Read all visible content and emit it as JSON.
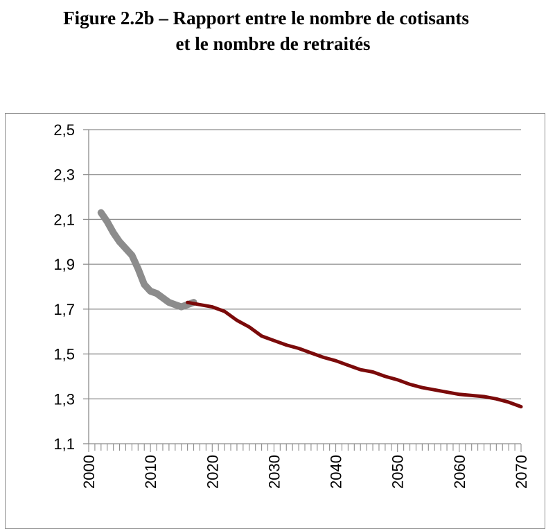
{
  "title": {
    "line1": "Figure 2.2b – Rapport entre le nombre de cotisants",
    "line2": "et le nombre de retraités"
  },
  "chart_data": {
    "type": "line",
    "title": "Figure 2.2b – Rapport entre le nombre de cotisants et le nombre de retraités",
    "xlabel": "",
    "ylabel": "",
    "xlim": [
      2000,
      2070
    ],
    "ylim": [
      1.1,
      2.5
    ],
    "yticks": [
      "2,5",
      "2,3",
      "2,1",
      "1,9",
      "1,7",
      "1,5",
      "1,3",
      "1,1"
    ],
    "ytick_values": [
      2.5,
      2.3,
      2.1,
      1.9,
      1.7,
      1.5,
      1.3,
      1.1
    ],
    "xticks": [
      "2000",
      "2010",
      "2020",
      "2030",
      "2040",
      "2050",
      "2060",
      "2070"
    ],
    "xtick_values": [
      2000,
      2010,
      2020,
      2030,
      2040,
      2050,
      2060,
      2070
    ],
    "grid": true,
    "legend": "none",
    "series": [
      {
        "color": "#8c8c8c",
        "x": [
          2002,
          2003,
          2004,
          2005,
          2006,
          2007,
          2008,
          2009,
          2010,
          2011,
          2012,
          2013,
          2014,
          2015,
          2016,
          2017
        ],
        "values": [
          2.13,
          2.09,
          2.04,
          2.0,
          1.97,
          1.94,
          1.88,
          1.81,
          1.78,
          1.77,
          1.75,
          1.73,
          1.72,
          1.71,
          1.72,
          1.73
        ]
      },
      {
        "color": "#7b0a0a",
        "x": [
          2016,
          2018,
          2020,
          2022,
          2024,
          2026,
          2028,
          2030,
          2032,
          2034,
          2036,
          2038,
          2040,
          2042,
          2044,
          2046,
          2048,
          2050,
          2052,
          2054,
          2056,
          2058,
          2060,
          2062,
          2064,
          2066,
          2068,
          2070
        ],
        "values": [
          1.73,
          1.72,
          1.71,
          1.69,
          1.65,
          1.62,
          1.58,
          1.56,
          1.54,
          1.525,
          1.505,
          1.485,
          1.47,
          1.45,
          1.43,
          1.42,
          1.4,
          1.385,
          1.365,
          1.35,
          1.34,
          1.33,
          1.32,
          1.315,
          1.31,
          1.3,
          1.285,
          1.265
        ]
      }
    ]
  }
}
